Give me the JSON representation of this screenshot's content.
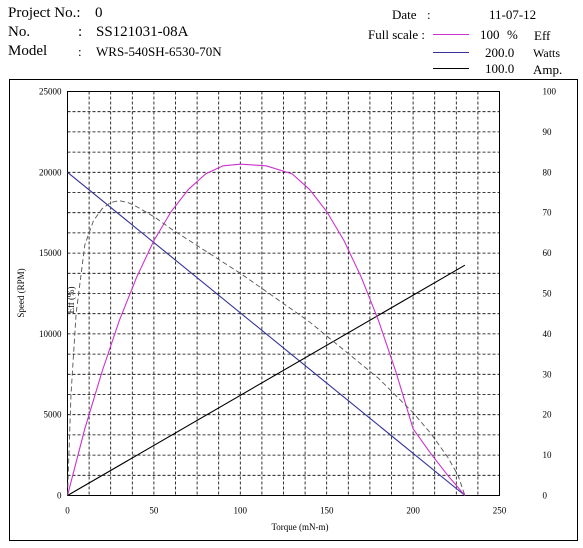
{
  "header": {
    "project_label": "Project No.:",
    "project_value": "0",
    "no_label": "No.",
    "no_colon": ":",
    "no_value": "SS121031-08A",
    "model_label": "Model",
    "model_colon": ":",
    "model_value": "WRS-540SH-6530-70N",
    "date_label": "Date",
    "date_colon": ":",
    "date_value": "11-07-12",
    "fullscale_label": "Full scale :"
  },
  "legend": [
    {
      "value": "100",
      "unit": "%",
      "name": "Eff",
      "color": "#cc33cc"
    },
    {
      "value": "200.0",
      "unit": "",
      "name": "Watts",
      "color": "#333399"
    },
    {
      "value": "100.0",
      "unit": "",
      "name": "Amp.",
      "color": "#000000"
    }
  ],
  "chart_data": {
    "type": "line",
    "xlabel": "Torque (mN-m)",
    "ylabel": "Speed (RPM)",
    "y2label": "Eff (%)",
    "xlim": [
      0,
      250
    ],
    "ylim": [
      0,
      25000
    ],
    "y2lim": [
      0,
      100
    ],
    "xticks": [
      0,
      50,
      100,
      150,
      200,
      250
    ],
    "yticks": [
      0,
      5000,
      10000,
      15000,
      20000,
      25000
    ],
    "y2ticks": [
      0,
      10,
      20,
      30,
      40,
      50,
      60,
      70,
      80,
      90,
      100
    ],
    "grid": true,
    "series": [
      {
        "name": "Speed",
        "axis": "left",
        "color": "#333399",
        "style": "solid",
        "x": [
          0,
          230
        ],
        "y": [
          20000,
          0
        ]
      },
      {
        "name": "Amp.",
        "axis": "right",
        "color": "#000000",
        "style": "solid",
        "x": [
          0,
          230
        ],
        "y": [
          0,
          57
        ]
      },
      {
        "name": "Watts",
        "axis": "right",
        "color": "#cc33cc",
        "style": "solid",
        "x": [
          0,
          10,
          20,
          30,
          40,
          50,
          60,
          70,
          80,
          90,
          100,
          115,
          130,
          140,
          150,
          160,
          170,
          180,
          190,
          200,
          210,
          220,
          230
        ],
        "y": [
          0,
          16.5,
          30.7,
          43.3,
          54.0,
          63.1,
          70.3,
          75.8,
          79.6,
          81.6,
          82.0,
          81.6,
          79.6,
          75.8,
          70.3,
          63.1,
          54.0,
          43.3,
          30.7,
          16.5,
          10.5,
          5.0,
          0
        ]
      },
      {
        "name": "Eff",
        "axis": "right",
        "color": "#555555",
        "style": "dashed",
        "x": [
          0,
          2,
          5,
          10,
          15,
          20,
          25,
          30,
          35,
          40,
          50,
          60,
          80,
          100,
          120,
          140,
          160,
          180,
          200,
          210,
          220,
          226,
          230
        ],
        "y": [
          0,
          25,
          45,
          62,
          68,
          71,
          72.5,
          73,
          72.5,
          71.5,
          69,
          66,
          60.5,
          55,
          49,
          43,
          36,
          29,
          20.5,
          15.5,
          9.5,
          5,
          0
        ]
      }
    ]
  }
}
